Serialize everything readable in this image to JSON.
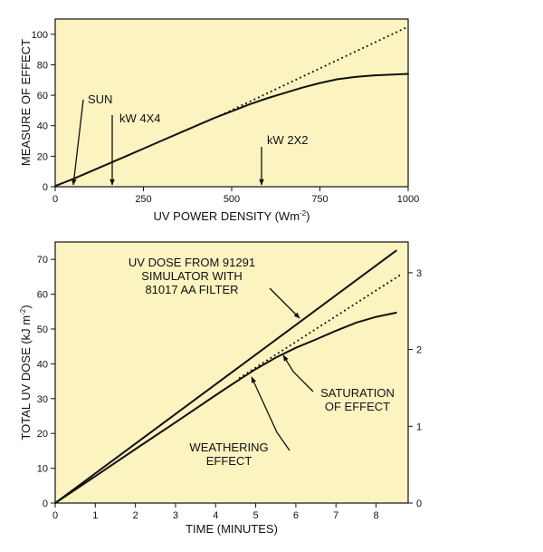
{
  "colors": {
    "plot_background": "#fbf3c0",
    "line": "#111111",
    "page": "#ffffff"
  },
  "chart_data": [
    {
      "type": "line",
      "xlabel": "UV POWER DENSITY (Wm",
      "xlabel_sup": "-2",
      "xlabel_tail": ")",
      "ylabel": "MEASURE OF EFFECT",
      "xlim": [
        0,
        1000
      ],
      "ylim": [
        0,
        110
      ],
      "xticks": [
        0,
        250,
        500,
        750,
        1000
      ],
      "yticks": [
        0,
        20,
        40,
        60,
        80,
        100
      ],
      "grid": false,
      "series": [
        {
          "style": "solid",
          "x": [
            0,
            50,
            100,
            150,
            200,
            250,
            300,
            350,
            400,
            450,
            500,
            550,
            600,
            650,
            700,
            750,
            800,
            850,
            900,
            950,
            1000
          ],
          "y": [
            0.5,
            5,
            10,
            15,
            20,
            25,
            30,
            35,
            40,
            45,
            49.5,
            54,
            58,
            61.5,
            65,
            68,
            70.5,
            72,
            73,
            73.5,
            74
          ]
        },
        {
          "style": "dotted",
          "x": [
            470,
            1000
          ],
          "y": [
            47,
            105
          ]
        }
      ],
      "annotations": [
        {
          "text": "SUN",
          "x": 55
        },
        {
          "text": "kW 4X4",
          "x": 160
        },
        {
          "text": "kW 2X2",
          "x": 590
        }
      ]
    },
    {
      "type": "line",
      "xlabel": "TIME (MINUTES)",
      "ylabel": "TOTAL UV DOSE (kJ m",
      "ylabel_sup": "-2",
      "ylabel_tail": ")",
      "xlim": [
        0,
        8.8
      ],
      "ylim": [
        0,
        75
      ],
      "y2lim": [
        0,
        3.4
      ],
      "xticks": [
        0,
        1,
        2,
        3,
        4,
        5,
        6,
        7,
        8
      ],
      "yticks": [
        0,
        10,
        20,
        30,
        40,
        50,
        60,
        70
      ],
      "y2ticks": [
        0,
        1,
        2,
        3
      ],
      "grid": false,
      "series": [
        {
          "style": "solid",
          "x": [
            0,
            8.5
          ],
          "y": [
            0,
            72.5
          ]
        },
        {
          "style": "solid",
          "x": [
            0,
            1,
            2,
            3,
            4,
            4.5,
            5,
            5.5,
            6,
            6.5,
            7,
            7.5,
            8,
            8.5
          ],
          "y": [
            0,
            7.7,
            15.5,
            23.2,
            31,
            34.8,
            38.5,
            41.8,
            44.6,
            47,
            49.5,
            51.8,
            53.5,
            54.7
          ]
        },
        {
          "style": "dotted",
          "x": [
            4.6,
            8.6
          ],
          "y": [
            36,
            65.5
          ]
        }
      ],
      "annotations": [
        {
          "lines": [
            "UV DOSE FROM 91291",
            "SIMULATOR WITH",
            "81017 AA FILTER"
          ]
        },
        {
          "lines": [
            "SATURATION",
            "OF EFFECT"
          ]
        },
        {
          "lines": [
            "WEATHERING",
            "EFFECT"
          ]
        }
      ]
    }
  ]
}
